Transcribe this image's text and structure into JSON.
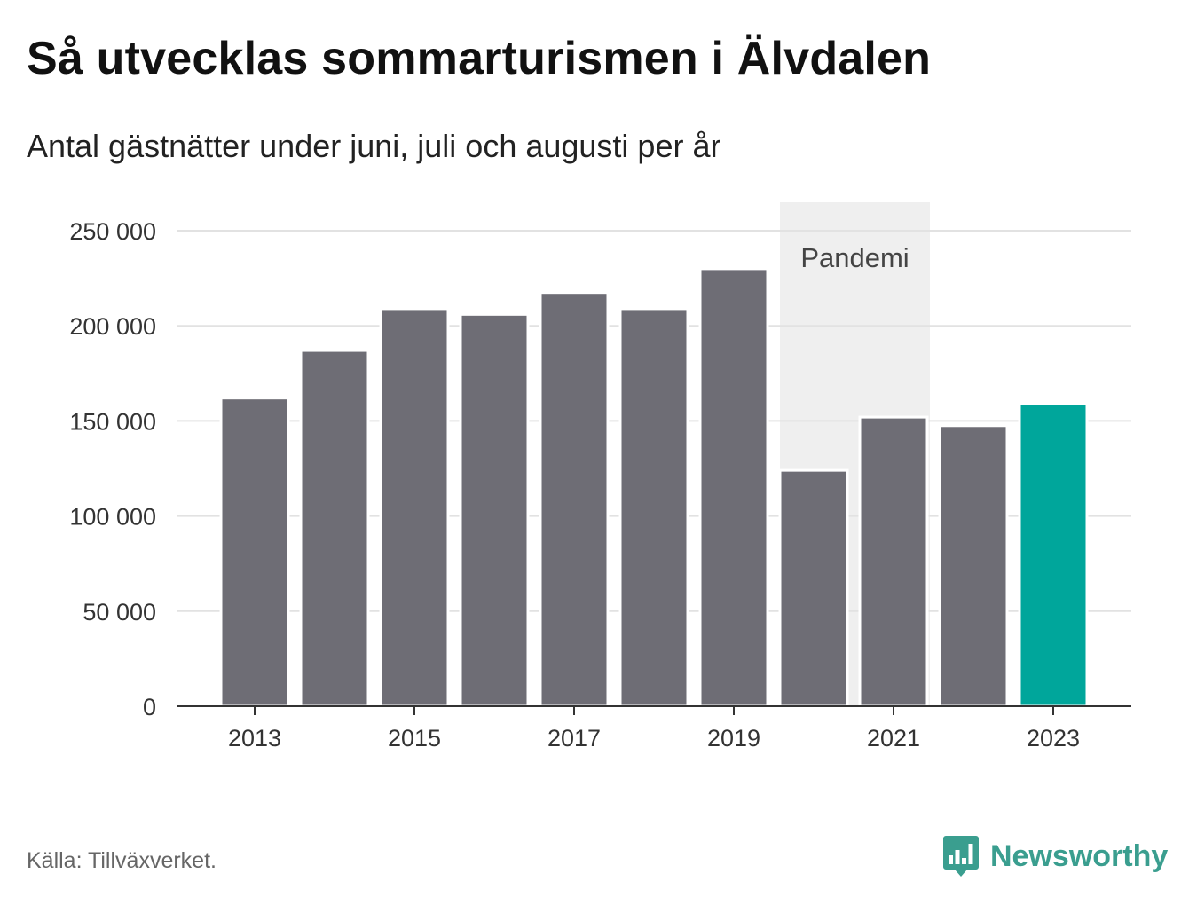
{
  "header": {
    "title": "Så utvecklas sommarturismen i Älvdalen",
    "subtitle": "Antal gästnätter under juni, juli och augusti per år"
  },
  "footer": {
    "source": "Källa: Tillväxverket.",
    "brand": "Newsworthy",
    "brand_icon": "bar-chart-speech-icon"
  },
  "colors": {
    "bar": "#6e6d75",
    "highlight": "#00a69b",
    "band": "#efefef",
    "grid": "#e2e2e2",
    "axis": "#333333",
    "brand": "#3a9e8f"
  },
  "chart_data": {
    "type": "bar",
    "title": "Så utvecklas sommarturismen i Älvdalen",
    "subtitle": "Antal gästnätter under juni, juli och augusti per år",
    "categories": [
      "2013",
      "2014",
      "2015",
      "2016",
      "2017",
      "2018",
      "2019",
      "2020",
      "2021",
      "2022",
      "2023"
    ],
    "values": [
      162000,
      187000,
      209000,
      206000,
      217500,
      209000,
      230000,
      124000,
      152000,
      147500,
      159000
    ],
    "highlight_category": "2023",
    "xlabel": "",
    "ylabel": "",
    "ylim": [
      0,
      250000
    ],
    "yticks": [
      0,
      50000,
      100000,
      150000,
      200000,
      250000
    ],
    "ytick_labels": [
      "0",
      "50 000",
      "100 000",
      "150 000",
      "200 000",
      "250 000"
    ],
    "xtick_labels": [
      "2013",
      "2015",
      "2017",
      "2019",
      "2021",
      "2023"
    ],
    "grid": true,
    "legend": "none",
    "annotations": [
      {
        "type": "band",
        "label": "Pandemi",
        "from": "2020",
        "to": "2021"
      }
    ]
  }
}
